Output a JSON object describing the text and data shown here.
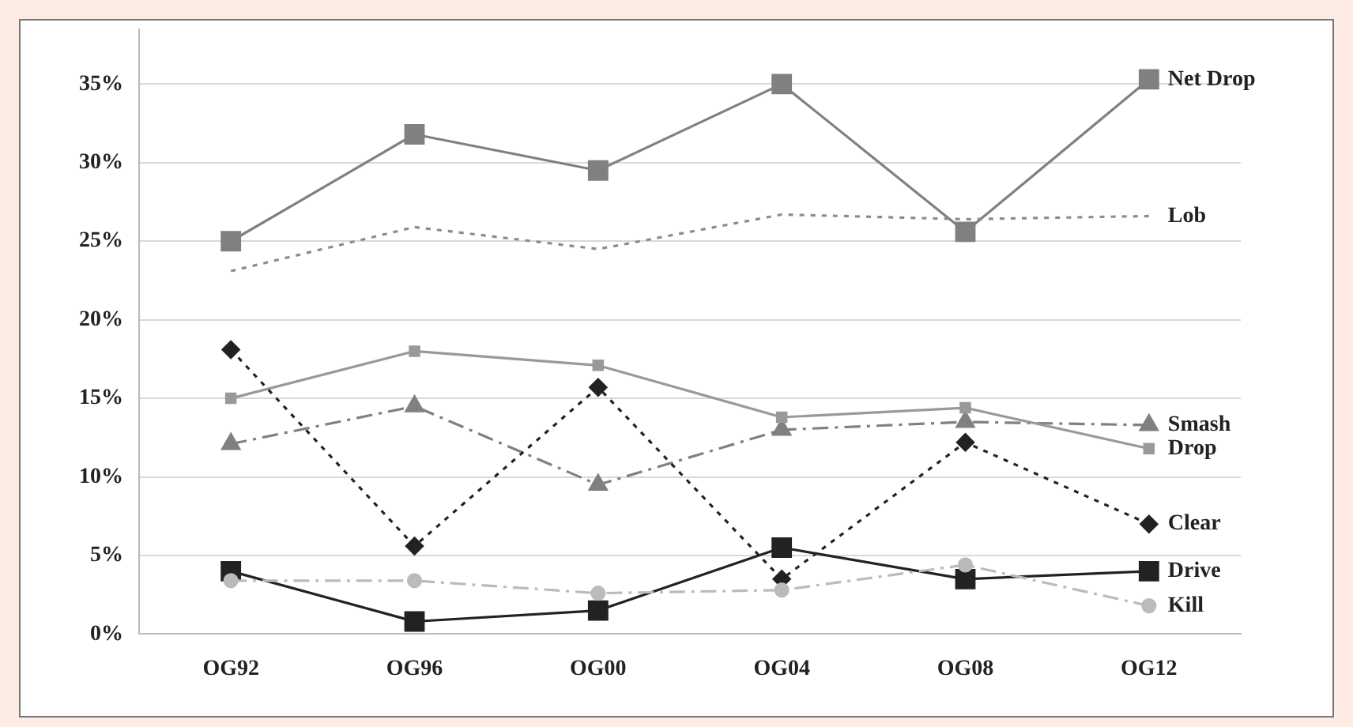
{
  "chart_data": {
    "type": "line",
    "categories": [
      "OG92",
      "OG96",
      "OG00",
      "OG04",
      "OG08",
      "OG12"
    ],
    "series": [
      {
        "name": "Net Drop",
        "color": "#808080",
        "marker": "square",
        "line_style": "solid",
        "values": [
          25,
          31.8,
          29.5,
          35,
          25.6,
          35.3
        ]
      },
      {
        "name": "Lob",
        "color": "#8c8c8c",
        "marker": "none",
        "line_style": "dotted",
        "values": [
          23.1,
          25.9,
          24.5,
          26.7,
          26.4,
          26.6
        ]
      },
      {
        "name": "Smash",
        "color": "#808080",
        "marker": "triangle",
        "line_style": "dashed",
        "values": [
          12.1,
          14.5,
          9.5,
          13,
          13.5,
          13.3
        ]
      },
      {
        "name": "Drop",
        "color": "#999999",
        "marker": "square",
        "line_style": "solid",
        "values": [
          15,
          18,
          17.1,
          13.8,
          14.4,
          11.8
        ]
      },
      {
        "name": "Clear",
        "color": "#222222",
        "marker": "diamond",
        "line_style": "dotted",
        "values": [
          18.1,
          5.6,
          15.7,
          3.5,
          12.2,
          7
        ]
      },
      {
        "name": "Drive",
        "color": "#222222",
        "marker": "square",
        "line_style": "solid",
        "values": [
          4,
          0.8,
          1.5,
          5.5,
          3.5,
          4
        ]
      },
      {
        "name": "Kill",
        "color": "#bbbbbb",
        "marker": "circle",
        "line_style": "dashed",
        "values": [
          3.4,
          3.4,
          2.6,
          2.8,
          4.4,
          1.8
        ]
      }
    ],
    "ylim": [
      0,
      38.5
    ],
    "yticks": [
      {
        "value": 0,
        "label": "0%"
      },
      {
        "value": 5,
        "label": "5%"
      },
      {
        "value": 10,
        "label": "10%"
      },
      {
        "value": 15,
        "label": "15%"
      },
      {
        "value": 20,
        "label": "20%"
      },
      {
        "value": 25,
        "label": "25%"
      },
      {
        "value": 30,
        "label": "30%"
      },
      {
        "value": 35,
        "label": "35%"
      }
    ],
    "grid": "y",
    "legend": false
  }
}
